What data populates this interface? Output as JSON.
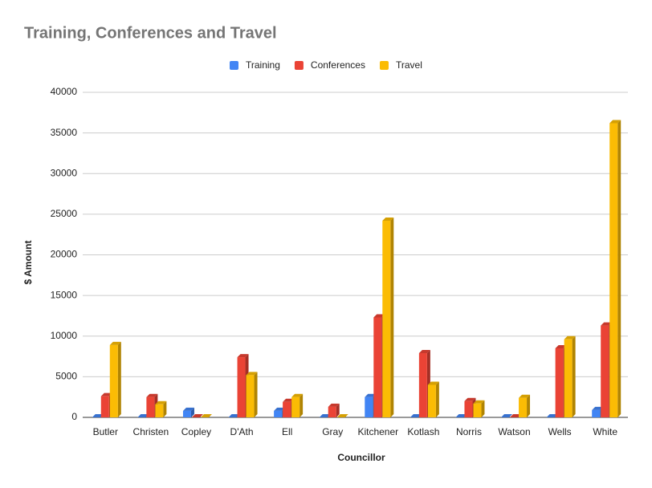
{
  "chart_data": {
    "type": "bar3d",
    "title": "Training, Conferences and Travel",
    "x_label": "Councillor",
    "y_label": "$ Amount",
    "categories": [
      "Butler",
      "Christen",
      "Copley",
      "D'Ath",
      "Ell",
      "Gray",
      "Kitchener",
      "Kotlash",
      "Norris",
      "Watson",
      "Wells",
      "White"
    ],
    "series": [
      {
        "name": "Training",
        "color": "#4285f4",
        "values": [
          0,
          0,
          800,
          0,
          800,
          0,
          2500,
          0,
          0,
          0,
          0,
          900
        ]
      },
      {
        "name": "Conferences",
        "color": "#ea4335",
        "values": [
          2600,
          2500,
          0,
          7400,
          1900,
          1300,
          12300,
          7900,
          2000,
          0,
          8500,
          11300
        ]
      },
      {
        "name": "Travel",
        "color": "#fbbc04",
        "values": [
          8900,
          1600,
          0,
          5200,
          2500,
          0,
          24200,
          4000,
          1700,
          2400,
          9600,
          36200
        ]
      }
    ],
    "ylim": [
      0,
      40000
    ],
    "yticks": [
      0,
      5000,
      10000,
      15000,
      20000,
      25000,
      30000,
      35000,
      40000
    ],
    "grid": true,
    "legend": "top"
  }
}
